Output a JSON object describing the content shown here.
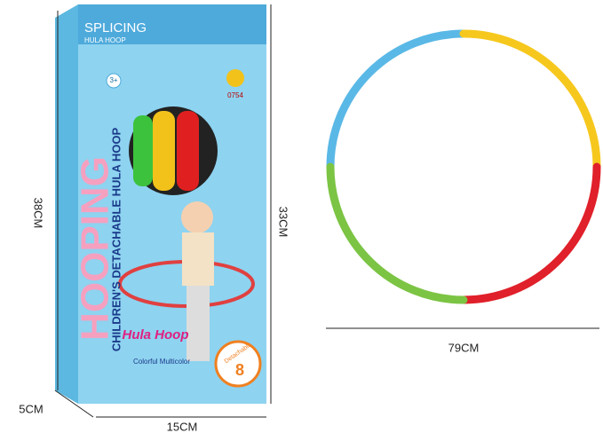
{
  "box": {
    "title": "SPLICING",
    "subtitle": "HULA HOOP",
    "age": "3+",
    "code": "0754",
    "side_text": "HOOPING",
    "front_text": "CHILDREN'S DETACHABLE HULA HOOP",
    "logo": "Hula Hoop",
    "feature": "Colorful Multicolor",
    "badge_label": "Detachable",
    "badge_number": "8"
  },
  "dimensions": {
    "box_height": "38CM",
    "box_inner_height": "33CM",
    "box_width": "15CM",
    "box_depth": "5CM",
    "hoop_diameter": "79CM"
  }
}
